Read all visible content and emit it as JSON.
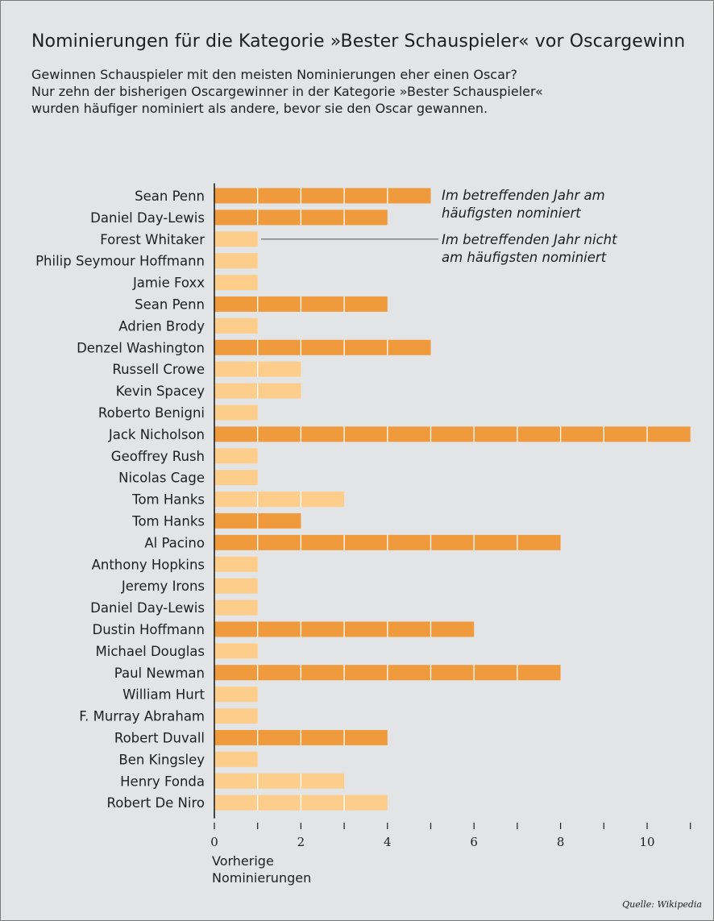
{
  "colors": {
    "background": "#e3e4e5",
    "most_nominated": "#ef9a3c",
    "not_most_nominated": "#fdcd8c",
    "segment_divider": "#ffffff",
    "axis": "#1e1e1e"
  },
  "chart_data": {
    "type": "bar",
    "orientation": "horizontal",
    "title": "Nominierungen für die Kategorie »Bester Schauspieler« vor Oscargewinn",
    "subtitle": [
      "Gewinnen Schauspieler mit den meisten Nominierungen eher einen Oscar?",
      "Nur zehn der bisherigen Oscargewinner in der Kategorie »Bester Schauspieler«",
      "wurden häufiger nominiert als andere, bevor sie den Oscar gewannen."
    ],
    "xlabel": [
      "Vorherige",
      "Nominierungen"
    ],
    "xlim": [
      0,
      11
    ],
    "xticks_labeled": [
      "0",
      "2",
      "4",
      "6",
      "8",
      "10"
    ],
    "grid": false,
    "categories": [
      "Sean Penn",
      "Daniel Day-Lewis",
      "Forest Whitaker",
      "Philip Seymour Hoffmann",
      "Jamie Foxx",
      "Sean Penn",
      "Adrien Brody",
      "Denzel Washington",
      "Russell Crowe",
      "Kevin Spacey",
      "Roberto Benigni",
      "Jack Nicholson",
      "Geoffrey Rush",
      "Nicolas Cage",
      "Tom Hanks",
      "Tom Hanks",
      "Al Pacino",
      "Anthony Hopkins",
      "Jeremy Irons",
      "Daniel Day-Lewis",
      "Dustin Hoffmann",
      "Michael Douglas",
      "Paul Newman",
      "William Hurt",
      "F. Murray Abraham",
      "Robert Duvall",
      "Ben Kingsley",
      "Henry Fonda",
      "Robert De Niro"
    ],
    "values": [
      5,
      4,
      1,
      1,
      1,
      4,
      1,
      5,
      2,
      2,
      1,
      11,
      1,
      1,
      3,
      2,
      8,
      1,
      1,
      1,
      6,
      1,
      8,
      1,
      1,
      4,
      1,
      3,
      4
    ],
    "most_nominated": [
      true,
      true,
      false,
      false,
      false,
      true,
      false,
      true,
      false,
      false,
      false,
      true,
      false,
      false,
      false,
      true,
      true,
      false,
      false,
      false,
      true,
      false,
      true,
      false,
      false,
      true,
      false,
      false,
      false
    ],
    "annotations": [
      {
        "lines": [
          "Im betreffenden Jahr am",
          "häufigsten nominiert"
        ]
      },
      {
        "lines": [
          "Im betreffenden Jahr nicht",
          "am häufigsten nominiert"
        ]
      }
    ]
  },
  "source": "Quelle: Wikipedia"
}
